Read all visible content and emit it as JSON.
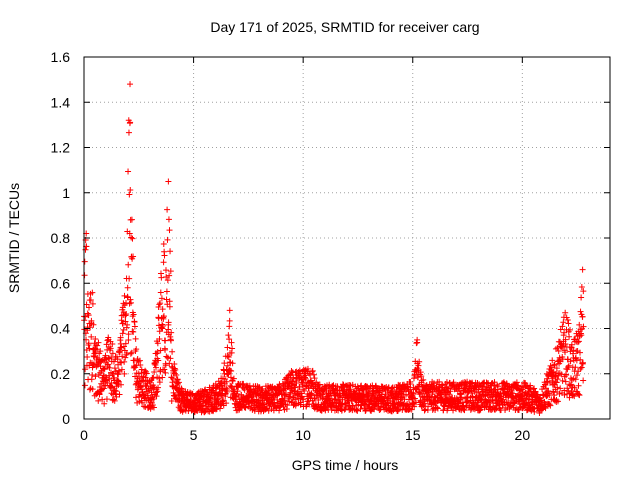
{
  "chart_data": {
    "type": "scatter",
    "title": "Day 171 of 2025, SRMTID for receiver carg",
    "xlabel": "GPS time / hours",
    "ylabel": "SRMTID / TECUs",
    "xlim": [
      0,
      24
    ],
    "ylim": [
      0,
      1.6
    ],
    "x_ticks": [
      0,
      5,
      10,
      15,
      20
    ],
    "x_tick_labels": [
      "0",
      "5",
      "10",
      "15",
      "20"
    ],
    "y_ticks": [
      0,
      0.2,
      0.4,
      0.6,
      0.8,
      1.0,
      1.2,
      1.4,
      1.6
    ],
    "y_tick_labels": [
      "0",
      "0.2",
      "0.4",
      "0.6",
      "0.8",
      "1",
      "1.2",
      "1.4",
      "1.6"
    ],
    "grid": true,
    "marker": "+",
    "series_color": "#ff0000",
    "envelope": {
      "x": [
        0,
        0.1,
        0.2,
        0.35,
        0.5,
        0.7,
        0.9,
        1.1,
        1.3,
        1.5,
        1.7,
        1.9,
        2.0,
        2.1,
        2.2,
        2.4,
        2.6,
        2.8,
        3.0,
        3.2,
        3.4,
        3.6,
        3.75,
        3.85,
        4.0,
        4.2,
        4.5,
        5.0,
        5.5,
        6.0,
        6.3,
        6.6,
        6.9,
        7.5,
        8.0,
        8.5,
        9.0,
        9.5,
        10.0,
        10.3,
        10.6,
        11.0,
        12.0,
        13.0,
        14.0,
        15.0,
        15.2,
        15.5,
        16.0,
        17.0,
        18.0,
        19.0,
        20.0,
        20.5,
        20.8,
        21.0,
        21.3,
        21.6,
        21.8,
        22.0,
        22.3,
        22.6,
        22.8
      ],
      "y": [
        0.55,
        0.5,
        0.45,
        0.55,
        0.35,
        0.3,
        0.22,
        0.35,
        0.3,
        0.25,
        0.4,
        0.6,
        0.8,
        1.05,
        0.55,
        0.28,
        0.22,
        0.2,
        0.15,
        0.2,
        0.45,
        0.7,
        0.75,
        0.5,
        0.3,
        0.18,
        0.12,
        0.1,
        0.12,
        0.14,
        0.18,
        0.32,
        0.15,
        0.14,
        0.13,
        0.14,
        0.14,
        0.2,
        0.2,
        0.24,
        0.16,
        0.14,
        0.14,
        0.14,
        0.13,
        0.16,
        0.25,
        0.15,
        0.15,
        0.15,
        0.15,
        0.15,
        0.15,
        0.13,
        0.1,
        0.16,
        0.22,
        0.3,
        0.38,
        0.45,
        0.3,
        0.4,
        0.5
      ]
    },
    "peaks": [
      {
        "x": 2.1,
        "y": 1.48
      },
      {
        "x": 3.85,
        "y": 1.05
      },
      {
        "x": 0.1,
        "y": 0.82
      },
      {
        "x": 6.65,
        "y": 0.48
      },
      {
        "x": 15.2,
        "y": 0.35
      },
      {
        "x": 22.75,
        "y": 0.66
      }
    ],
    "n_points": 2700
  }
}
